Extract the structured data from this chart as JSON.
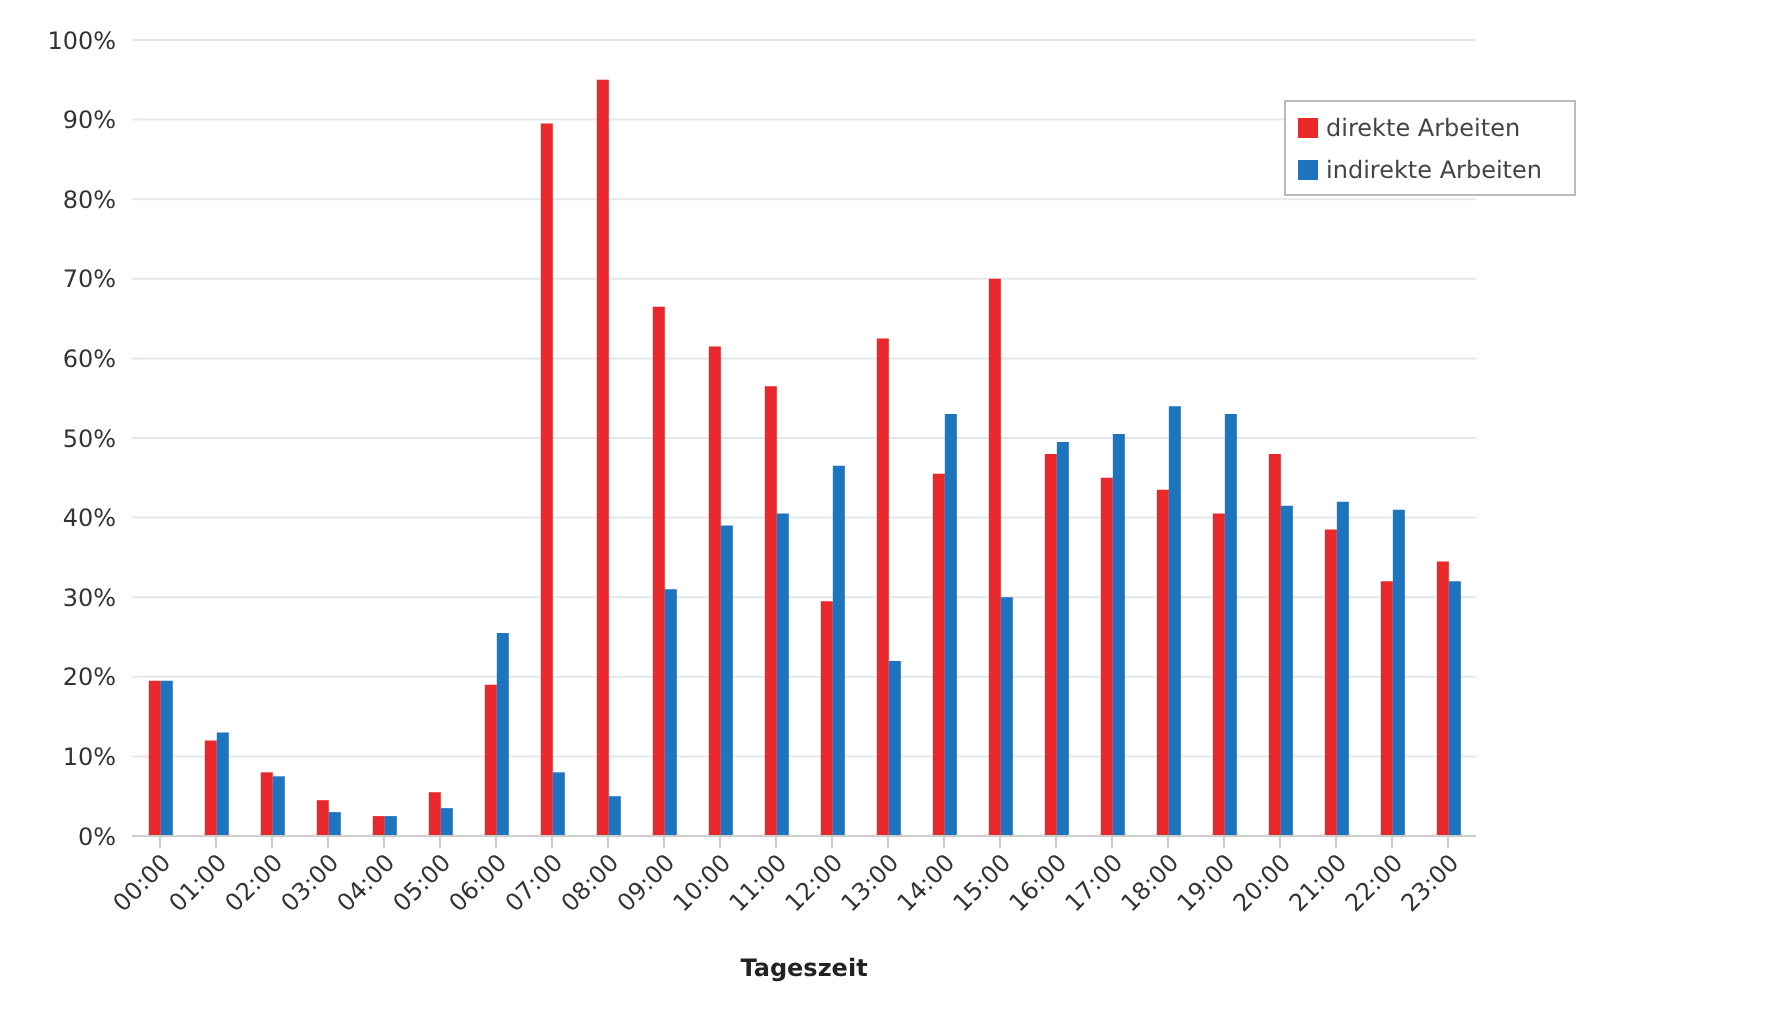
{
  "chart_data": {
    "type": "bar",
    "xlabel": "Tageszeit",
    "categories": [
      "00:00",
      "01:00",
      "02:00",
      "03:00",
      "04:00",
      "05:00",
      "06:00",
      "07:00",
      "08:00",
      "09:00",
      "10:00",
      "11:00",
      "12:00",
      "13:00",
      "14:00",
      "15:00",
      "16:00",
      "17:00",
      "18:00",
      "19:00",
      "20:00",
      "21:00",
      "22:00",
      "23:00"
    ],
    "series": [
      {
        "name": "direkte Arbeiten",
        "color": "#e8282b",
        "values": [
          19.5,
          12,
          8,
          4.5,
          2.5,
          5.5,
          19,
          89.5,
          95,
          66.5,
          61.5,
          56.5,
          29.5,
          62.5,
          45.5,
          70,
          48,
          45,
          43.5,
          40.5,
          48,
          38.5,
          32,
          34.5
        ]
      },
      {
        "name": "indirekte Arbeiten",
        "color": "#1f74c0",
        "values": [
          19.5,
          13,
          7.5,
          3,
          2.5,
          3.5,
          25.5,
          8,
          5,
          31,
          39,
          40.5,
          46.5,
          22,
          53,
          30,
          49.5,
          50.5,
          54,
          53,
          41.5,
          42,
          41,
          32
        ]
      }
    ],
    "ylim": [
      0,
      100
    ],
    "yticks": [
      {
        "value": 0,
        "label": "0%"
      },
      {
        "value": 10,
        "label": "10%"
      },
      {
        "value": 20,
        "label": "20%"
      },
      {
        "value": 30,
        "label": "30%"
      },
      {
        "value": 40,
        "label": "40%"
      },
      {
        "value": 50,
        "label": "50%"
      },
      {
        "value": 60,
        "label": "60%"
      },
      {
        "value": 70,
        "label": "70%"
      },
      {
        "value": 80,
        "label": "80%"
      },
      {
        "value": 90,
        "label": "90%"
      },
      {
        "value": 100,
        "label": "100%"
      }
    ],
    "grid": "y",
    "legend": "top right"
  }
}
